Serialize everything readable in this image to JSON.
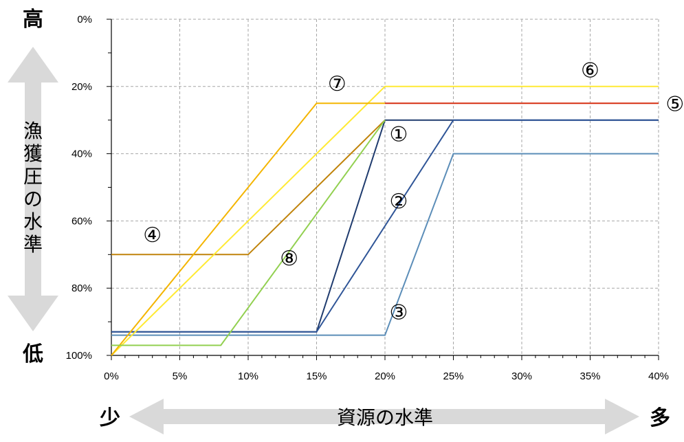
{
  "corner_labels": {
    "high": "高",
    "low": "低",
    "less": "少",
    "more": "多"
  },
  "chart_data": {
    "type": "line",
    "title": "",
    "xlabel": "資源の水準",
    "ylabel": "漁獲圧の水準",
    "xlim": [
      0,
      40
    ],
    "ylim": [
      0,
      100
    ],
    "y_inverted": true,
    "x_ticks": [
      0,
      5,
      10,
      15,
      20,
      25,
      30,
      35,
      40
    ],
    "x_tick_labels": [
      "0%",
      "5%",
      "10%",
      "15%",
      "20%",
      "25%",
      "30%",
      "35%",
      "40%"
    ],
    "y_ticks": [
      0,
      20,
      40,
      60,
      80,
      100
    ],
    "y_tick_labels": [
      "0%",
      "20%",
      "40%",
      "60%",
      "80%",
      "100%"
    ],
    "grid": true,
    "series": [
      {
        "name": "①",
        "color": "#1f3b6e",
        "x": [
          0,
          15,
          20,
          40
        ],
        "y": [
          93,
          93,
          30,
          30
        ],
        "label_at": [
          21,
          34
        ]
      },
      {
        "name": "②",
        "color": "#2f5597",
        "x": [
          0,
          15,
          25,
          40
        ],
        "y": [
          93,
          93,
          30,
          30
        ],
        "label_at": [
          21,
          54
        ]
      },
      {
        "name": "③",
        "color": "#5b8db8",
        "x": [
          0,
          20,
          25,
          40
        ],
        "y": [
          94,
          94,
          40,
          40
        ],
        "label_at": [
          21,
          87
        ]
      },
      {
        "name": "④",
        "color": "#c0830a",
        "x": [
          0,
          10,
          20
        ],
        "y": [
          70,
          70,
          30
        ],
        "label_at": [
          3,
          64
        ]
      },
      {
        "name": "⑤",
        "color": "#d62e10",
        "x": [
          20,
          40
        ],
        "y": [
          25,
          25
        ],
        "label_at": [
          41.2,
          25
        ]
      },
      {
        "name": "⑥",
        "color": "#ffea33",
        "x": [
          0,
          20,
          40
        ],
        "y": [
          100,
          20,
          20
        ],
        "label_at": [
          35,
          15
        ]
      },
      {
        "name": "⑦",
        "color": "#f4b500",
        "x": [
          0,
          15,
          20
        ],
        "y": [
          100,
          25,
          25
        ],
        "label_at": [
          16.5,
          19
        ]
      },
      {
        "name": "⑧",
        "color": "#92d050",
        "x": [
          0,
          8,
          20
        ],
        "y": [
          97,
          97,
          30
        ],
        "label_at": [
          13,
          71
        ]
      }
    ]
  }
}
